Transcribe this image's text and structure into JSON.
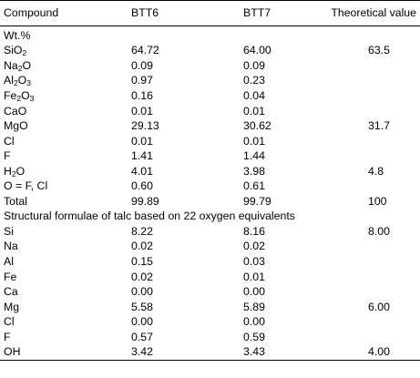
{
  "headers": [
    "Compound",
    "BTT6",
    "BTT7",
    "Theoretical value"
  ],
  "section_wt": "Wt.%",
  "wt_rows": [
    {
      "name": "SiO",
      "sub": "2",
      "tail": "",
      "btt6": "64.72",
      "btt7": "64.00",
      "theo": "63.5"
    },
    {
      "name": "Na",
      "sub": "2",
      "tail": "O",
      "btt6": "0.09",
      "btt7": "0.09",
      "theo": ""
    },
    {
      "name": "Al",
      "sub": "2",
      "tail": "O",
      "sub2": "3",
      "btt6": "0.97",
      "btt7": "0.23",
      "theo": ""
    },
    {
      "name": "Fe",
      "sub": "2",
      "tail": "O",
      "sub2": "3",
      "btt6": "0.16",
      "btt7": "0.04",
      "theo": ""
    },
    {
      "name": "CaO",
      "sub": "",
      "tail": "",
      "btt6": "0.01",
      "btt7": "0.01",
      "theo": ""
    },
    {
      "name": "MgO",
      "sub": "",
      "tail": "",
      "btt6": "29.13",
      "btt7": "30.62",
      "theo": "31.7"
    },
    {
      "name": "Cl",
      "sub": "",
      "tail": "",
      "btt6": "0.01",
      "btt7": "0.01",
      "theo": ""
    },
    {
      "name": "F",
      "sub": "",
      "tail": "",
      "btt6": "1.41",
      "btt7": "1.44",
      "theo": ""
    },
    {
      "name": "H",
      "sub": "2",
      "tail": "O",
      "btt6": "4.01",
      "btt7": "3.98",
      "theo": "4.8"
    },
    {
      "name": "O = F, Cl",
      "sub": "",
      "tail": "",
      "btt6": "0.60",
      "btt7": "0.61",
      "theo": ""
    },
    {
      "name": "Total",
      "sub": "",
      "tail": "",
      "btt6": "99.89",
      "btt7": "99.79",
      "theo": "100"
    }
  ],
  "section_struct": "Structural formulae of talc based on 22 oxygen equivalents",
  "struct_rows": [
    {
      "name": "Si",
      "btt6": "8.22",
      "btt7": "8.16",
      "theo": "8.00"
    },
    {
      "name": "Na",
      "btt6": "0.02",
      "btt7": "0.02",
      "theo": ""
    },
    {
      "name": "Al",
      "btt6": "0.15",
      "btt7": "0.03",
      "theo": ""
    },
    {
      "name": "Fe",
      "btt6": "0.02",
      "btt7": "0.01",
      "theo": ""
    },
    {
      "name": "Ca",
      "btt6": "0.00",
      "btt7": "0.00",
      "theo": ""
    },
    {
      "name": "Mg",
      "btt6": "5.58",
      "btt7": "5.89",
      "theo": "6.00"
    },
    {
      "name": "Cl",
      "btt6": "0.00",
      "btt7": "0.00",
      "theo": ""
    },
    {
      "name": "F",
      "btt6": "0.57",
      "btt7": "0.59",
      "theo": ""
    },
    {
      "name": "OH",
      "btt6": "3.42",
      "btt7": "3.43",
      "theo": "4.00"
    }
  ]
}
